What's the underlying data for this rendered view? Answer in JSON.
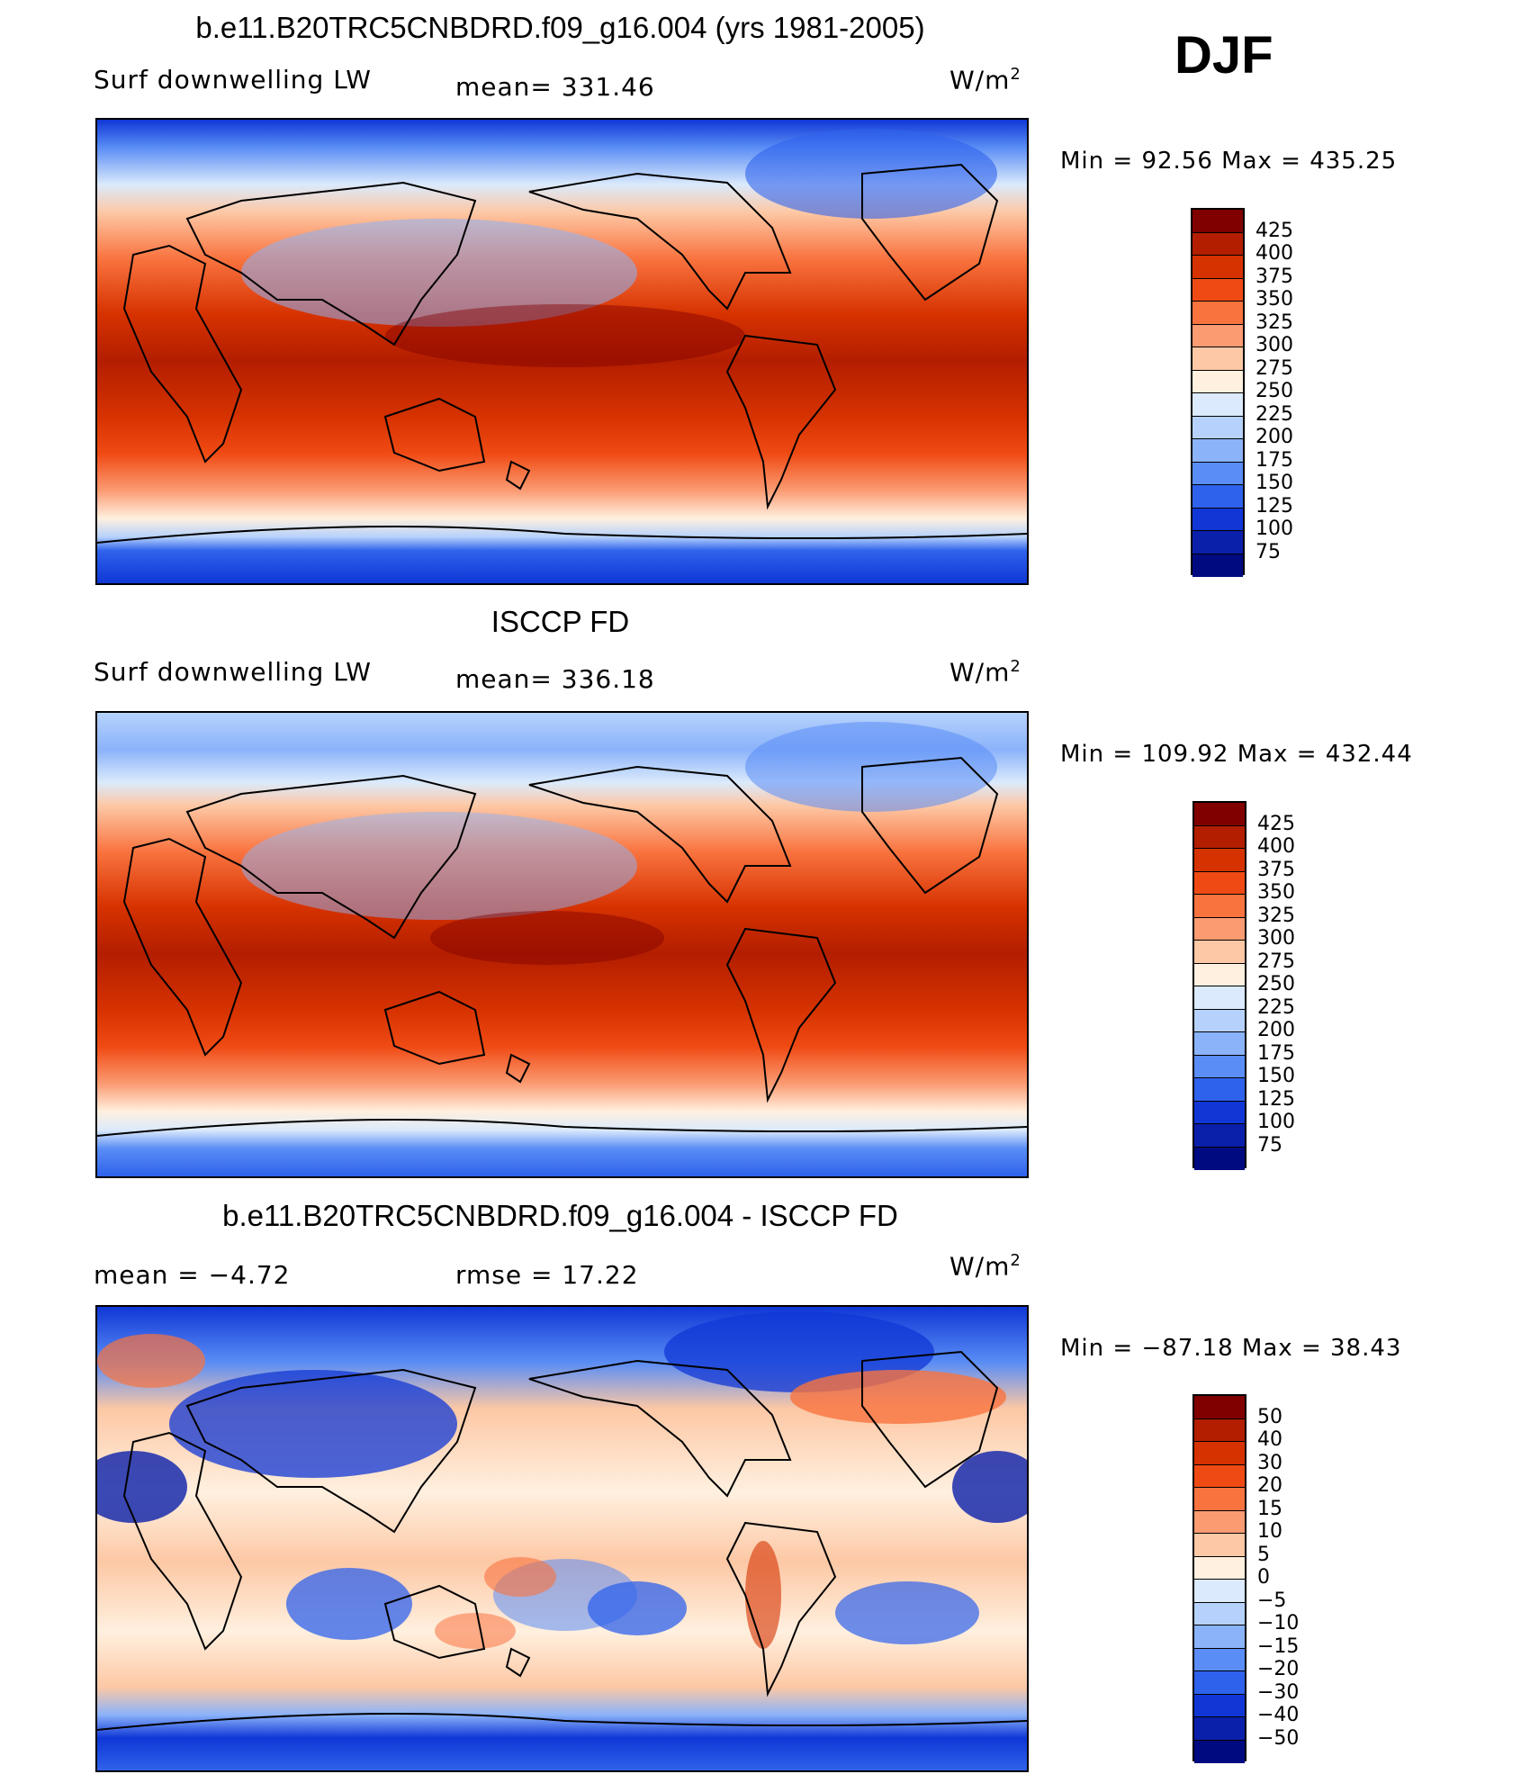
{
  "season": "DJF",
  "panels": [
    {
      "title": "b.e11.B20TRC5CNBDRD.f09_g16.004 (yrs 1981-2005)",
      "left_label": "Surf  downwelling  LW",
      "center_label": "mean=  331.46",
      "unit_base": "W/m",
      "unit_exp": "2",
      "minmax": "Min  =    92.56  Max  =  435.25"
    },
    {
      "title": "ISCCP FD",
      "left_label": "Surf  downwelling  LW",
      "center_label": "mean=  336.18",
      "unit_base": "W/m",
      "unit_exp": "2",
      "minmax": "Min  =  109.92  Max  =  432.44"
    },
    {
      "title": "b.e11.B20TRC5CNBDRD.f09_g16.004 - ISCCP FD",
      "left_label": "mean  =    −4.72",
      "center_label": "rmse  =    17.22",
      "unit_base": "W/m",
      "unit_exp": "2",
      "minmax": "Min  =  −87.18  Max  =    38.43"
    }
  ],
  "colorbars": [
    {
      "labels": [
        "425",
        "400",
        "375",
        "350",
        "325",
        "300",
        "275",
        "250",
        "225",
        "200",
        "175",
        "150",
        "125",
        "100",
        "75"
      ],
      "colors": [
        "#800000",
        "#b31e00",
        "#d63200",
        "#f04a14",
        "#f9733f",
        "#fb9b72",
        "#fdc8a5",
        "#fff0df",
        "#dbeafc",
        "#b6d2fc",
        "#8bb3fa",
        "#5a8df5",
        "#2f62ec",
        "#1037d6",
        "#0a1faa",
        "#000a80"
      ]
    },
    {
      "labels": [
        "425",
        "400",
        "375",
        "350",
        "325",
        "300",
        "275",
        "250",
        "225",
        "200",
        "175",
        "150",
        "125",
        "100",
        "75"
      ],
      "colors": [
        "#800000",
        "#b31e00",
        "#d63200",
        "#f04a14",
        "#f9733f",
        "#fb9b72",
        "#fdc8a5",
        "#fff0df",
        "#dbeafc",
        "#b6d2fc",
        "#8bb3fa",
        "#5a8df5",
        "#2f62ec",
        "#1037d6",
        "#0a1faa",
        "#000a80"
      ]
    },
    {
      "labels": [
        "50",
        "40",
        "30",
        "20",
        "15",
        "10",
        "5",
        "0",
        "−5",
        "−10",
        "−15",
        "−20",
        "−30",
        "−40",
        "−50"
      ],
      "colors": [
        "#800000",
        "#b31e00",
        "#d63200",
        "#f04a14",
        "#f9733f",
        "#fb9b72",
        "#fdc8a5",
        "#fff0df",
        "#dbeafc",
        "#b6d2fc",
        "#8bb3fa",
        "#5a8df5",
        "#2f62ec",
        "#1037d6",
        "#0a1faa",
        "#000a80"
      ]
    }
  ],
  "chart_data": [
    {
      "type": "heatmap",
      "title": "b.e11.B20TRC5CNBDRD.f09_g16.004 (yrs 1981-2005)",
      "variable": "Surf  downwelling  LW",
      "units": "W/m2",
      "mean": 331.46,
      "min": 92.56,
      "max": 435.25,
      "levels": [
        75,
        100,
        125,
        150,
        175,
        200,
        225,
        250,
        275,
        300,
        325,
        350,
        375,
        400,
        425
      ]
    },
    {
      "type": "heatmap",
      "title": "ISCCP FD",
      "variable": "Surf  downwelling  LW",
      "units": "W/m2",
      "mean": 336.18,
      "min": 109.92,
      "max": 432.44,
      "levels": [
        75,
        100,
        125,
        150,
        175,
        200,
        225,
        250,
        275,
        300,
        325,
        350,
        375,
        400,
        425
      ]
    },
    {
      "type": "heatmap",
      "title": "b.e11.B20TRC5CNBDRD.f09_g16.004 - ISCCP FD",
      "units": "W/m2",
      "mean": -4.72,
      "rmse": 17.22,
      "min": -87.18,
      "max": 38.43,
      "levels": [
        -50,
        -40,
        -30,
        -20,
        -15,
        -10,
        -5,
        0,
        5,
        10,
        15,
        20,
        30,
        40,
        50
      ]
    }
  ]
}
